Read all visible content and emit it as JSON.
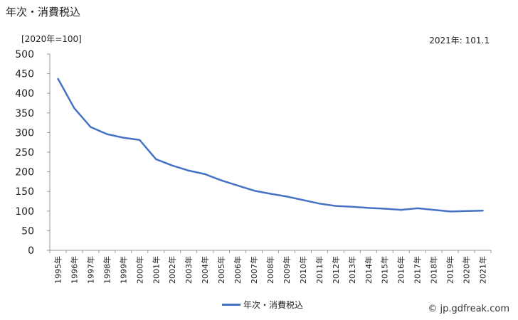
{
  "title": "年次・消費税込",
  "unit_label": "[2020年=100]",
  "latest_label": "2021年: 101.1",
  "credit": "© jp.gdfreak.com",
  "colors": {
    "series": "#4472c4",
    "axis": "#999999"
  },
  "chart_data": {
    "type": "line",
    "x": [
      "1995年",
      "1996年",
      "1997年",
      "1998年",
      "1999年",
      "2000年",
      "2001年",
      "2002年",
      "2003年",
      "2004年",
      "2005年",
      "2006年",
      "2007年",
      "2008年",
      "2009年",
      "2010年",
      "2011年",
      "2012年",
      "2013年",
      "2014年",
      "2015年",
      "2016年",
      "2017年",
      "2018年",
      "2019年",
      "2020年",
      "2021年"
    ],
    "series": [
      {
        "name": "年次・消費税込",
        "values": [
          437,
          362,
          314,
          296,
          287,
          281,
          232,
          216,
          203,
          194,
          178,
          165,
          152,
          144,
          137,
          128,
          119,
          113,
          111,
          108,
          106,
          103,
          107,
          103,
          99,
          100,
          101.1
        ]
      }
    ],
    "ylim": [
      0,
      500
    ],
    "yticks": [
      0,
      50,
      100,
      150,
      200,
      250,
      300,
      350,
      400,
      450,
      500
    ],
    "grid": false,
    "legend": "bottom-center"
  }
}
